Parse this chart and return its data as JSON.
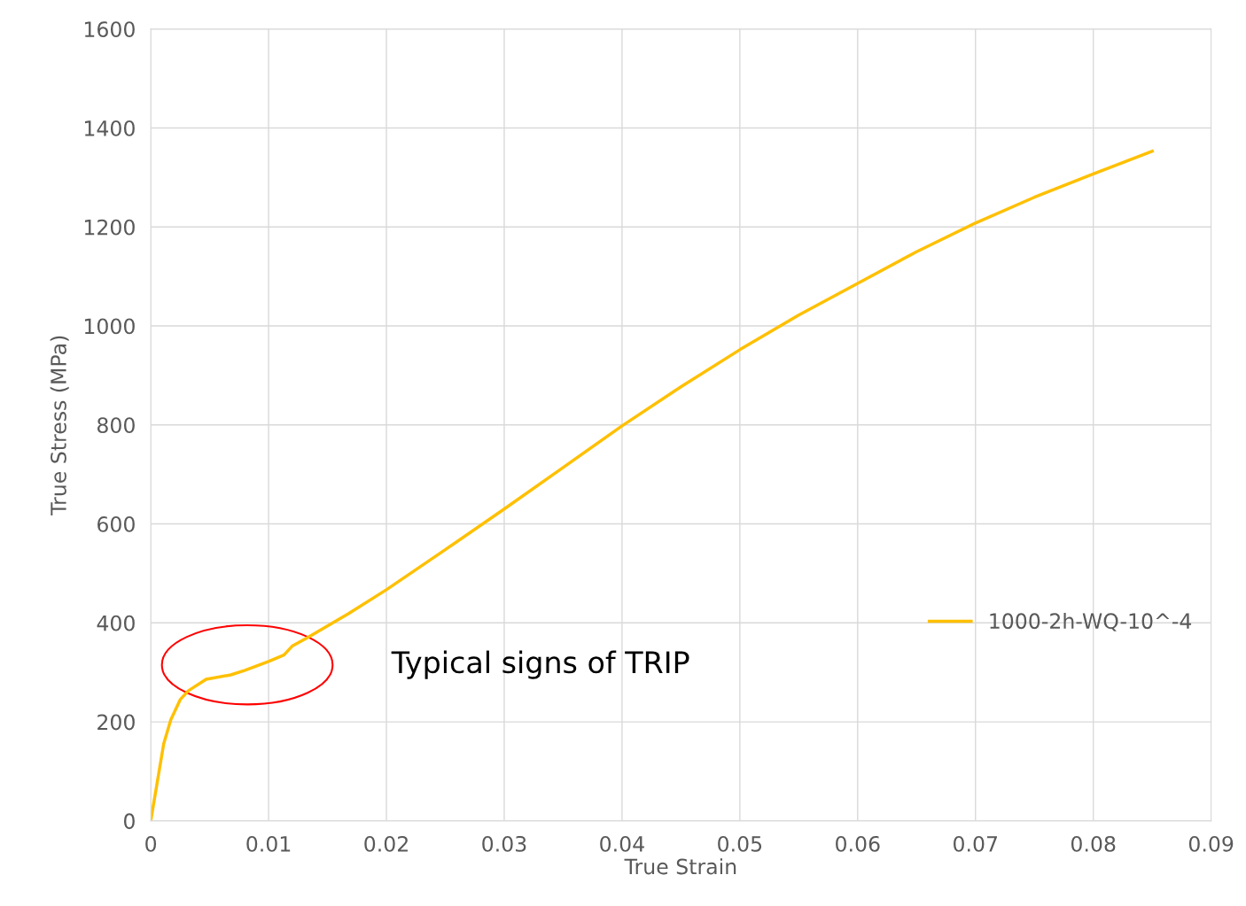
{
  "chart_data": {
    "type": "line",
    "xlabel": "True Strain",
    "ylabel": "True Stress (MPa)",
    "x": [
      0,
      0.0011,
      0.0017,
      0.0025,
      0.0032,
      0.0047,
      0.0068,
      0.008,
      0.01,
      0.0113,
      0.012,
      0.0133,
      0.0168,
      0.02,
      0.025,
      0.03,
      0.035,
      0.04,
      0.045,
      0.05,
      0.055,
      0.06,
      0.065,
      0.07,
      0.075,
      0.08,
      0.085
    ],
    "series": [
      {
        "name": "1000-2h-WQ-10^-4",
        "color": "#ffc000",
        "values": [
          0,
          156,
          204,
          245,
          263,
          286,
          295,
          304,
          322,
          335,
          353,
          370,
          419,
          467,
          548,
          630,
          714,
          798,
          877,
          952,
          1022,
          1086,
          1150,
          1208,
          1260,
          1307,
          1353
        ]
      }
    ],
    "xlim": [
      0,
      0.09
    ],
    "xticks": [
      0,
      0.01,
      0.02,
      0.03,
      0.04,
      0.05,
      0.06,
      0.07,
      0.08,
      0.09
    ],
    "ylim": [
      0,
      1600
    ],
    "yticks": [
      0,
      200,
      400,
      600,
      800,
      1000,
      1200,
      1400,
      1600
    ],
    "grid": true,
    "legend": "right",
    "marker": "none",
    "line_style": "solid",
    "annotations": [
      "Typical signs of TRIP"
    ]
  }
}
